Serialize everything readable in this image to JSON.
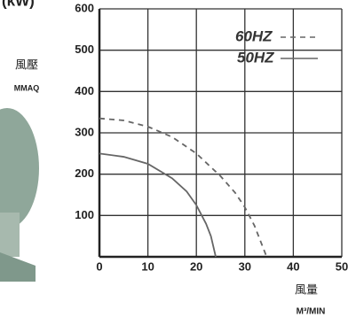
{
  "chart_data": {
    "type": "line",
    "corner_label": "(kW)",
    "y_label": "風壓",
    "y_unit": "MMAQ",
    "x_label": "風量",
    "x_unit": "M³/MIN",
    "xlim": [
      0,
      50
    ],
    "ylim": [
      0,
      600
    ],
    "xticks": [
      0,
      10,
      20,
      30,
      40,
      50
    ],
    "yticks": [
      100,
      200,
      300,
      400,
      500,
      600
    ],
    "grid": true,
    "series": [
      {
        "name": "60HZ",
        "color": "#666666",
        "line_style": "dashed",
        "x": [
          0,
          5,
          10,
          15,
          20,
          25,
          28,
          30,
          32,
          33,
          34.5
        ],
        "values": [
          335,
          330,
          315,
          290,
          250,
          195,
          155,
          120,
          75,
          45,
          0
        ]
      },
      {
        "name": "50HZ",
        "color": "#666666",
        "line_style": "solid",
        "x": [
          0,
          5,
          10,
          15,
          18,
          20,
          22,
          23,
          24
        ],
        "values": [
          250,
          242,
          225,
          190,
          158,
          125,
          80,
          50,
          0
        ]
      }
    ]
  }
}
